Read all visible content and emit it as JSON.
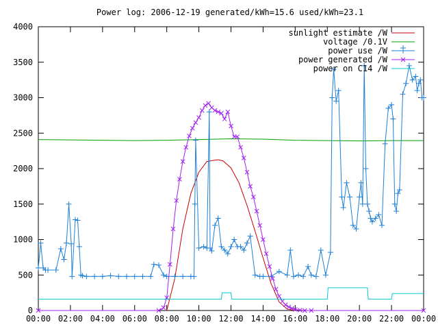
{
  "chart_data": {
    "type": "line",
    "title": "Power log: 2006-12-19 generated/kWh=15.6 used/kWh=23.1",
    "xlabel": "",
    "ylabel": "",
    "xlim": [
      0,
      24
    ],
    "ylim": [
      0,
      4000
    ],
    "x_ticks": [
      "00:00",
      "02:00",
      "04:00",
      "06:00",
      "08:00",
      "10:00",
      "12:00",
      "14:00",
      "16:00",
      "18:00",
      "20:00",
      "22:00",
      "00:00"
    ],
    "y_ticks": [
      "0",
      "500",
      "1000",
      "1500",
      "2000",
      "2500",
      "3000",
      "3500",
      "4000"
    ],
    "grid": false,
    "legend_position": "top-right",
    "series": [
      {
        "name": "sunlight estimate /W",
        "color": "#cc0000",
        "marker": "none",
        "x": [
          8.0,
          8.5,
          9.0,
          9.5,
          10.0,
          10.5,
          11.0,
          11.2,
          11.5,
          12.0,
          12.5,
          13.0,
          13.5,
          14.0,
          14.5,
          15.0,
          15.5,
          16.0
        ],
        "y": [
          0,
          450,
          1150,
          1650,
          1950,
          2100,
          2120,
          2125,
          2110,
          2010,
          1800,
          1480,
          1120,
          740,
          380,
          120,
          20,
          0
        ]
      },
      {
        "name": "voltage /0.1V",
        "color": "#00a000",
        "marker": "none",
        "x": [
          0,
          2,
          4,
          6,
          8,
          10,
          12,
          14,
          16,
          18,
          20,
          22,
          24
        ],
        "y": [
          2410,
          2405,
          2400,
          2395,
          2400,
          2410,
          2420,
          2415,
          2400,
          2395,
          2390,
          2395,
          2395
        ]
      },
      {
        "name": "power use /W",
        "color": "#1e7fd8",
        "marker": "plus",
        "x": [
          0.0,
          0.15,
          0.3,
          0.45,
          0.6,
          1.1,
          1.4,
          1.6,
          1.75,
          1.9,
          2.05,
          2.1,
          2.3,
          2.45,
          2.55,
          2.65,
          2.75,
          3.0,
          3.5,
          4.0,
          4.5,
          5.0,
          5.5,
          6.0,
          6.5,
          7.0,
          7.2,
          7.5,
          7.8,
          8.0,
          8.5,
          9.0,
          9.5,
          9.7,
          9.75,
          9.8,
          10.0,
          10.3,
          10.5,
          10.65,
          10.7,
          10.8,
          11.0,
          11.2,
          11.4,
          11.6,
          11.8,
          12.0,
          12.2,
          12.4,
          12.6,
          12.8,
          13.0,
          13.2,
          13.5,
          13.8,
          14.0,
          14.5,
          15.0,
          15.5,
          15.7,
          15.9,
          16.2,
          16.5,
          16.8,
          17.0,
          17.3,
          17.6,
          17.9,
          18.2,
          18.3,
          18.4,
          18.55,
          18.7,
          18.9,
          19.0,
          19.2,
          19.4,
          19.6,
          19.8,
          20.0,
          20.1,
          20.2,
          20.3,
          20.4,
          20.5,
          20.6,
          20.7,
          20.8,
          21.0,
          21.2,
          21.4,
          21.6,
          21.8,
          22.0,
          22.1,
          22.2,
          22.3,
          22.4,
          22.5,
          22.7,
          22.9,
          23.1,
          23.3,
          23.5,
          23.6,
          23.7,
          23.8,
          23.9,
          24.0
        ],
        "y": [
          600,
          950,
          600,
          570,
          570,
          570,
          870,
          720,
          950,
          1500,
          940,
          480,
          1280,
          1270,
          900,
          500,
          490,
          480,
          480,
          480,
          490,
          480,
          480,
          480,
          480,
          480,
          650,
          640,
          500,
          480,
          480,
          480,
          480,
          480,
          1500,
          2400,
          880,
          900,
          880,
          2800,
          880,
          840,
          1200,
          1300,
          900,
          850,
          800,
          900,
          1000,
          900,
          900,
          850,
          950,
          1050,
          500,
          480,
          480,
          480,
          550,
          500,
          850,
          480,
          500,
          480,
          620,
          500,
          480,
          850,
          500,
          820,
          3000,
          3400,
          2950,
          3100,
          1600,
          1450,
          1800,
          1600,
          1200,
          1150,
          1600,
          1800,
          1500,
          3450,
          2000,
          1500,
          1400,
          1300,
          1250,
          1300,
          1350,
          1200,
          2350,
          2850,
          2900,
          2700,
          1500,
          1400,
          1650,
          1700,
          3050,
          3200,
          3450,
          3250,
          3300,
          3100,
          3200,
          3250,
          3000,
          3000
        ]
      },
      {
        "name": "power generated /W",
        "color": "#a020f0",
        "marker": "x",
        "x": [
          0,
          7.5,
          7.8,
          8.0,
          8.2,
          8.4,
          8.6,
          8.8,
          9.0,
          9.2,
          9.4,
          9.6,
          9.8,
          10.0,
          10.2,
          10.4,
          10.6,
          10.8,
          11.0,
          11.2,
          11.4,
          11.6,
          11.8,
          12.0,
          12.2,
          12.4,
          12.6,
          12.8,
          13.0,
          13.2,
          13.4,
          13.6,
          13.8,
          14.0,
          14.2,
          14.4,
          14.6,
          14.8,
          15.0,
          15.2,
          15.4,
          15.6,
          15.8,
          16.0,
          16.3,
          16.6,
          17.0,
          24.0
        ],
        "y": [
          0,
          0,
          40,
          180,
          650,
          1150,
          1550,
          1850,
          2100,
          2300,
          2460,
          2570,
          2650,
          2720,
          2820,
          2890,
          2920,
          2860,
          2820,
          2800,
          2780,
          2700,
          2800,
          2600,
          2450,
          2450,
          2300,
          2150,
          1950,
          1750,
          1600,
          1400,
          1200,
          1000,
          800,
          620,
          450,
          300,
          200,
          130,
          80,
          50,
          30,
          15,
          5,
          0,
          0,
          0
        ]
      },
      {
        "name": "power on C14 /W",
        "color": "#00c8d0",
        "marker": "none",
        "x": [
          0,
          11.4,
          11.45,
          12.0,
          12.05,
          18.0,
          18.05,
          20.5,
          20.55,
          22.0,
          22.05,
          24.0
        ],
        "y": [
          160,
          160,
          250,
          250,
          160,
          160,
          320,
          320,
          160,
          160,
          240,
          240
        ]
      }
    ]
  }
}
